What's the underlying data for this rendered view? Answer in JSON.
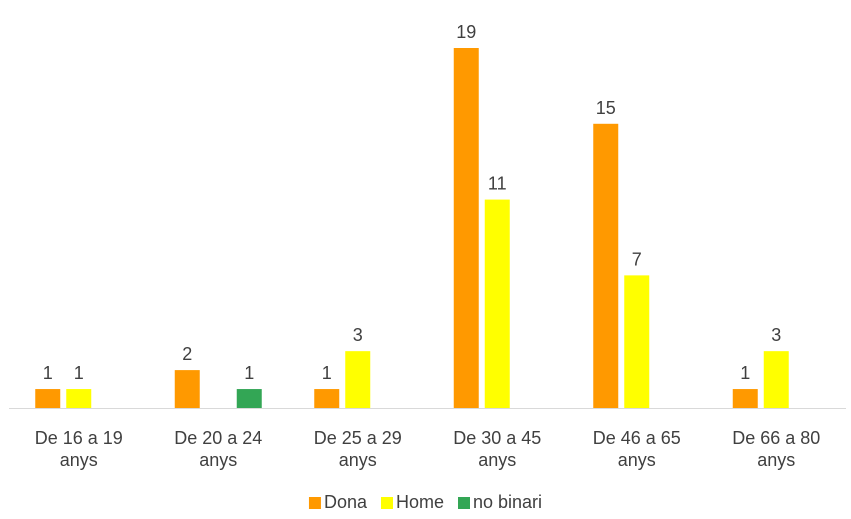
{
  "chart_data": {
    "type": "bar",
    "categories": [
      [
        "De 16 a 19",
        "anys"
      ],
      [
        "De 20 a 24",
        "anys"
      ],
      [
        "De 25 a 29",
        "anys"
      ],
      [
        "De 30 a 45",
        "anys"
      ],
      [
        "De 46 a 65",
        "anys"
      ],
      [
        "De 66 a 80",
        "anys"
      ]
    ],
    "series": [
      {
        "name": "Dona",
        "color": "#FF9900",
        "values": [
          1,
          2,
          1,
          19,
          15,
          1
        ]
      },
      {
        "name": "Home",
        "color": "#FFFF00",
        "values": [
          1,
          null,
          3,
          11,
          7,
          3
        ]
      },
      {
        "name": "no binari",
        "color": "#33A655",
        "values": [
          null,
          1,
          null,
          null,
          null,
          null
        ]
      }
    ],
    "ylim": [
      0,
      19
    ],
    "grid": false,
    "legend_position": "bottom"
  }
}
